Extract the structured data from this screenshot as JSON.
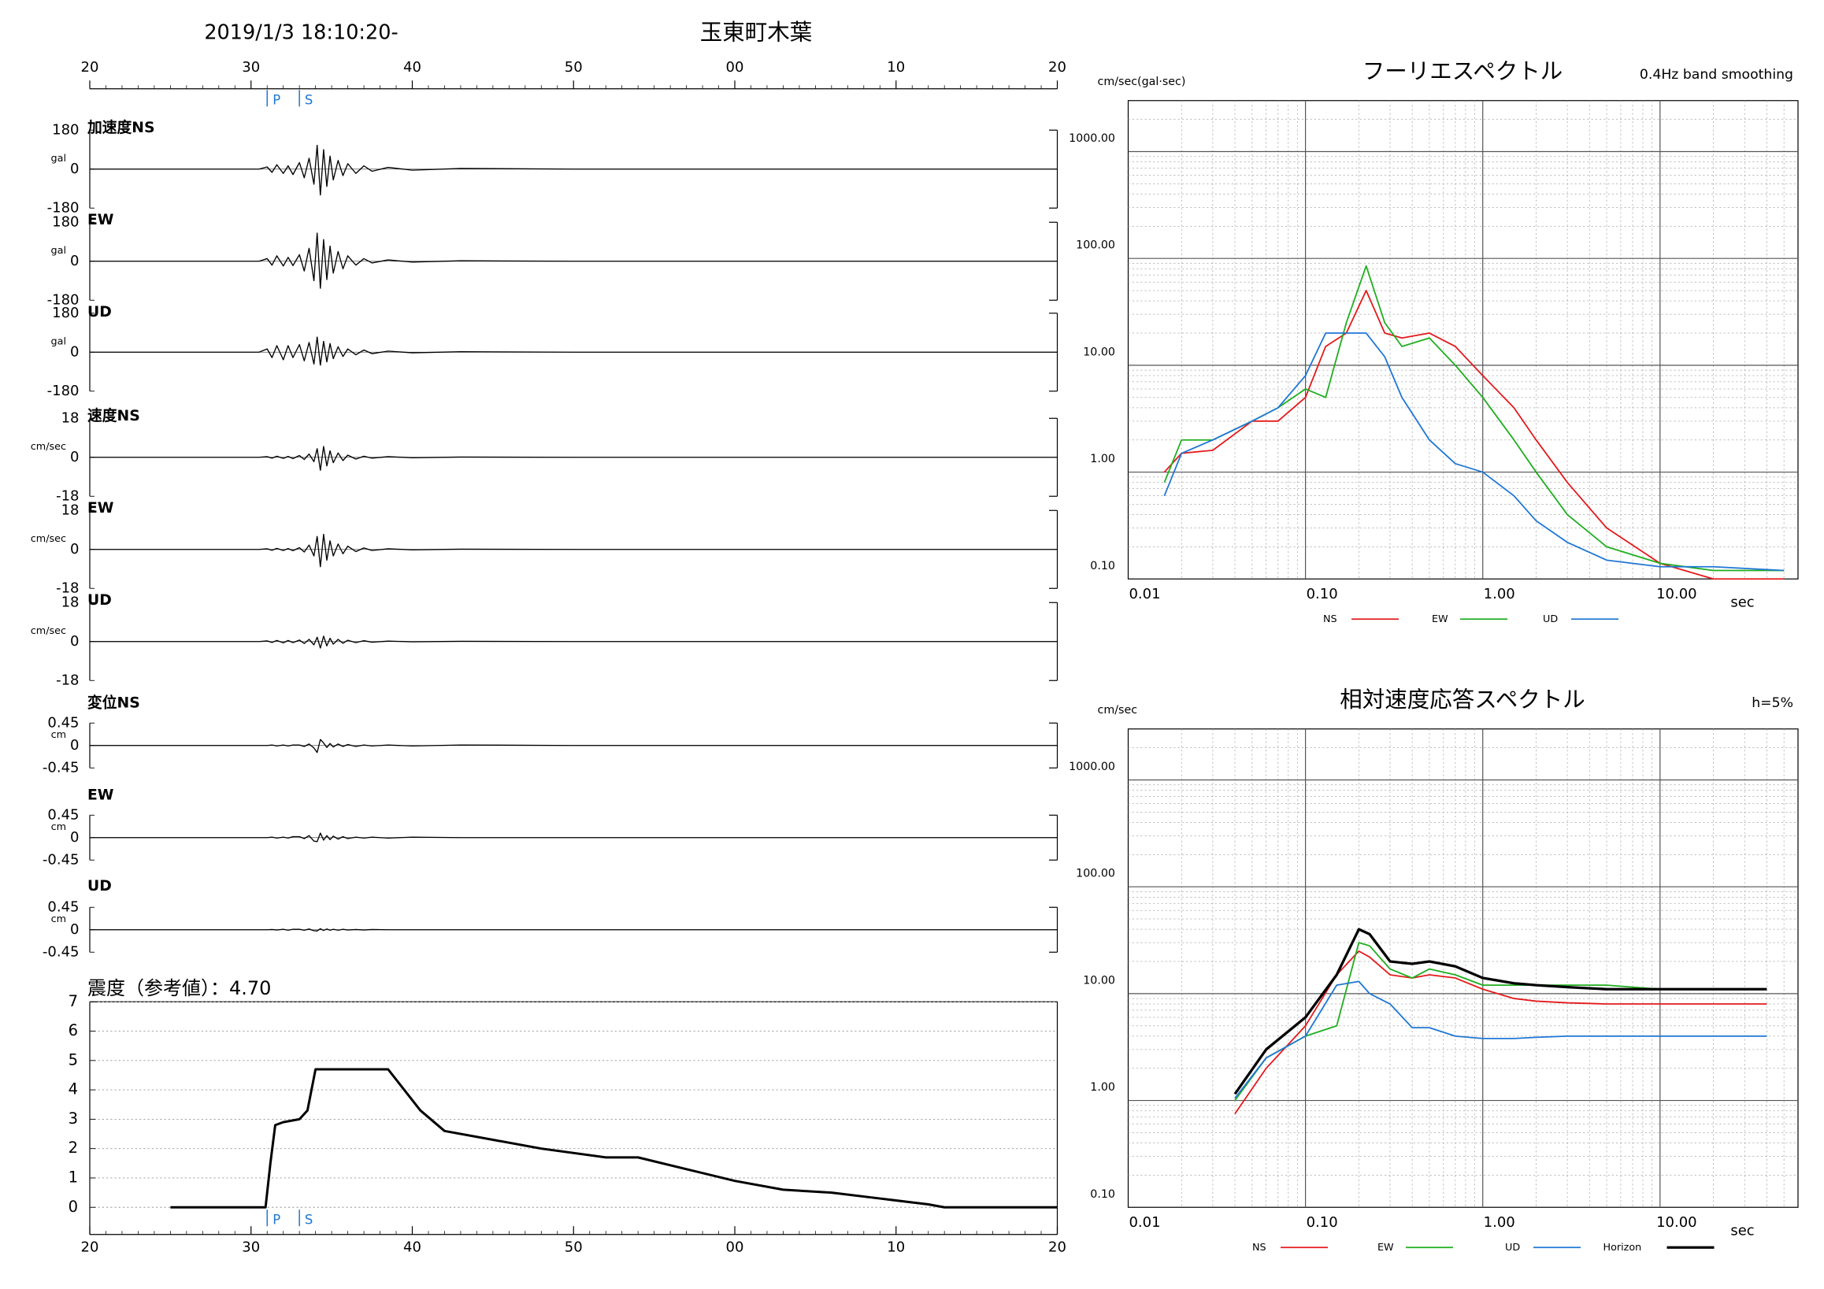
{
  "header": {
    "datetime": "2019/1/3 18:10:20-",
    "station": "玉東町木葉"
  },
  "chart_data": [
    {
      "type": "waveform",
      "xlim": [
        20,
        80
      ],
      "xticks": [
        20,
        30,
        40,
        50,
        {
          "value": 60,
          "label": "00"
        },
        {
          "value": 70,
          "label": "10"
        },
        {
          "value": 80,
          "label": "20"
        }
      ],
      "markers": [
        {
          "label": "P",
          "x": 31
        },
        {
          "label": "S",
          "x": 33
        }
      ],
      "marker_color": "#1f77d4",
      "color": "#000000",
      "x": [
        20,
        30.5,
        31,
        31.3,
        31.6,
        32,
        32.3,
        32.6,
        33,
        33.3,
        33.6,
        33.9,
        34.1,
        34.3,
        34.5,
        34.7,
        34.9,
        35.1,
        35.4,
        35.7,
        36,
        36.5,
        37,
        37.5,
        38.5,
        40,
        43,
        50,
        80
      ],
      "panels": [
        {
          "label": "加速度NS",
          "unit": "gal",
          "ylim": [
            -180,
            180
          ],
          "yticks": [
            -180,
            0,
            180
          ],
          "values": [
            0,
            0,
            10,
            -15,
            20,
            -20,
            15,
            -25,
            30,
            -40,
            50,
            -70,
            110,
            -120,
            90,
            -80,
            60,
            -50,
            40,
            -30,
            25,
            -20,
            15,
            -10,
            8,
            -5,
            3,
            0,
            0
          ]
        },
        {
          "label": "EW",
          "unit": "gal",
          "ylim": [
            -180,
            180
          ],
          "yticks": [
            -180,
            0,
            180
          ],
          "values": [
            0,
            0,
            12,
            -18,
            25,
            -22,
            18,
            -20,
            30,
            -45,
            60,
            -90,
            130,
            -125,
            100,
            -85,
            70,
            -55,
            45,
            -35,
            25,
            -18,
            12,
            -8,
            6,
            -4,
            2,
            0,
            0
          ]
        },
        {
          "label": "UD",
          "unit": "gal",
          "ylim": [
            -180,
            180
          ],
          "yticks": [
            -180,
            0,
            180
          ],
          "values": [
            0,
            0,
            15,
            -25,
            30,
            -35,
            30,
            -25,
            35,
            -40,
            45,
            -55,
            70,
            -60,
            50,
            -45,
            40,
            -30,
            25,
            -20,
            15,
            -12,
            10,
            -7,
            5,
            -3,
            2,
            0,
            0
          ]
        },
        {
          "label": "速度NS",
          "unit": "cm/sec",
          "ylim": [
            -18,
            18
          ],
          "yticks": [
            -18,
            0,
            18
          ],
          "values": [
            0,
            0,
            0.3,
            -0.4,
            0.5,
            -0.5,
            0.4,
            -0.6,
            0.8,
            -1,
            1.5,
            -2,
            4,
            -6,
            5,
            -4,
            3,
            -2.5,
            2,
            -1.5,
            1,
            -0.8,
            0.5,
            -0.4,
            0.3,
            -0.2,
            0.1,
            0,
            0
          ]
        },
        {
          "label": "EW",
          "unit": "cm/sec",
          "ylim": [
            -18,
            18
          ],
          "yticks": [
            -18,
            0,
            18
          ],
          "values": [
            0,
            0,
            0.3,
            -0.4,
            0.5,
            -0.5,
            0.4,
            -0.6,
            0.8,
            -1.2,
            2,
            -3,
            6,
            -8,
            7,
            -5,
            4,
            -3,
            2.5,
            -2,
            1.5,
            -1,
            0.7,
            -0.5,
            0.3,
            -0.2,
            0.1,
            0,
            0
          ]
        },
        {
          "label": "UD",
          "unit": "cm/sec",
          "ylim": [
            -18,
            18
          ],
          "yticks": [
            -18,
            0,
            18
          ],
          "values": [
            0,
            0,
            0.3,
            -0.4,
            0.5,
            -0.6,
            0.5,
            -0.5,
            0.7,
            -0.9,
            1,
            -1.5,
            2,
            -3,
            2.5,
            -2,
            1.5,
            -1.2,
            1,
            -0.8,
            0.6,
            -0.5,
            0.4,
            -0.3,
            0.2,
            -0.1,
            0.1,
            0,
            0
          ]
        },
        {
          "label": "変位NS",
          "unit": "cm",
          "ylim": [
            -0.45,
            0.45
          ],
          "yticks": [
            -0.45,
            0,
            0.45
          ],
          "values": [
            0,
            0,
            0,
            0.01,
            -0.01,
            0.01,
            -0.01,
            0.01,
            0.01,
            -0.02,
            0.03,
            -0.05,
            -0.14,
            0.12,
            0.05,
            -0.04,
            0.04,
            -0.03,
            0.03,
            -0.02,
            0.02,
            -0.02,
            0.01,
            -0.01,
            0.01,
            -0.01,
            0.01,
            0,
            0
          ]
        },
        {
          "label": "EW",
          "unit": "cm",
          "ylim": [
            -0.45,
            0.45
          ],
          "yticks": [
            -0.45,
            0,
            0.45
          ],
          "values": [
            0,
            0,
            0,
            0.01,
            -0.01,
            0.01,
            -0.01,
            0.02,
            0.02,
            -0.02,
            0.04,
            -0.07,
            -0.08,
            0.09,
            -0.05,
            0.04,
            -0.04,
            0.03,
            -0.03,
            0.02,
            -0.02,
            0.01,
            -0.01,
            0.01,
            -0.01,
            0.01,
            0,
            0,
            0
          ]
        },
        {
          "label": "UD",
          "unit": "cm",
          "ylim": [
            -0.45,
            0.45
          ],
          "yticks": [
            -0.45,
            0,
            0.45
          ],
          "values": [
            0,
            0,
            0,
            0.005,
            -0.005,
            0.01,
            -0.01,
            0.01,
            0.01,
            -0.01,
            0.015,
            -0.02,
            -0.025,
            0.02,
            -0.015,
            0.015,
            -0.01,
            0.01,
            -0.01,
            0.01,
            -0.005,
            0.005,
            -0.005,
            0.005,
            0,
            0,
            0,
            0,
            0
          ]
        }
      ]
    },
    {
      "type": "intensity",
      "title": "震度（参考値）：4.70",
      "xlim": [
        20,
        80
      ],
      "xticks": [
        20,
        30,
        40,
        50,
        {
          "value": 60,
          "label": "00"
        },
        {
          "value": 70,
          "label": "10"
        },
        {
          "value": 80,
          "label": "20"
        }
      ],
      "markers": [
        {
          "label": "P",
          "x": 31
        },
        {
          "label": "S",
          "x": 33
        }
      ],
      "marker_color": "#1f77d4",
      "ylim": [
        0,
        7
      ],
      "yticks": [
        0,
        1,
        2,
        3,
        4,
        5,
        6,
        7
      ],
      "grid": true,
      "color": "#000000",
      "x": [
        25,
        30.9,
        31.2,
        31.5,
        32,
        33,
        33.5,
        34,
        35,
        38.5,
        39.5,
        40.5,
        42,
        45,
        48,
        52,
        54,
        57,
        60,
        63,
        66,
        69,
        72,
        73,
        80
      ],
      "values": [
        0,
        0,
        1.5,
        2.8,
        2.9,
        3.0,
        3.3,
        4.7,
        4.7,
        4.7,
        4.0,
        3.3,
        2.6,
        2.3,
        2.0,
        1.7,
        1.7,
        1.3,
        0.9,
        0.6,
        0.5,
        0.3,
        0.1,
        0,
        0
      ]
    },
    {
      "type": "loglog",
      "title": "フーリエスペクトル",
      "subtitle": "0.4Hz band smoothing",
      "ylabel": "cm/sec(gal·sec)",
      "xlabel": "sec",
      "log_x": true,
      "log_y": true,
      "grid": true,
      "xlim": [
        0.01,
        60
      ],
      "ylim": [
        0.1,
        3000
      ],
      "xticks": [
        {
          "value": 0.01,
          "label": "0.01"
        },
        {
          "value": 0.1,
          "label": "0.10"
        },
        {
          "value": 1,
          "label": "1.00"
        },
        {
          "value": 10,
          "label": "10.00"
        }
      ],
      "yticks": [
        {
          "value": 0.1,
          "label": "0.10"
        },
        {
          "value": 1,
          "label": "1.00"
        },
        {
          "value": 10,
          "label": "10.00"
        },
        {
          "value": 100,
          "label": "100.00"
        },
        {
          "value": 1000,
          "label": "1000.00"
        }
      ],
      "x": [
        0.016,
        0.02,
        0.03,
        0.05,
        0.07,
        0.1,
        0.13,
        0.17,
        0.22,
        0.28,
        0.35,
        0.5,
        0.7,
        1,
        1.5,
        2,
        3,
        5,
        10,
        20,
        50
      ],
      "series": [
        {
          "name": "NS",
          "color": "#e31a1c",
          "values": [
            1,
            1.5,
            1.6,
            3,
            3,
            5,
            15,
            20,
            50,
            20,
            18,
            20,
            15,
            8,
            4,
            2,
            0.8,
            0.3,
            0.14,
            0.1,
            0.1
          ]
        },
        {
          "name": "EW",
          "color": "#1fae1f",
          "values": [
            0.8,
            2,
            2,
            3,
            4,
            6,
            5,
            25,
            85,
            25,
            15,
            18,
            10,
            5,
            2,
            1,
            0.4,
            0.2,
            0.14,
            0.12,
            0.12
          ]
        },
        {
          "name": "UD",
          "color": "#1f77d4",
          "values": [
            0.6,
            1.5,
            2,
            3,
            4,
            8,
            20,
            20,
            20,
            12,
            5,
            2,
            1.2,
            1,
            0.6,
            0.35,
            0.22,
            0.15,
            0.13,
            0.13,
            0.12
          ]
        }
      ]
    },
    {
      "type": "loglog",
      "title": "相対速度応答スペクトル",
      "subtitle": "h=5%",
      "ylabel": "cm/sec",
      "xlabel": "sec",
      "log_x": true,
      "log_y": true,
      "grid": true,
      "xlim": [
        0.01,
        60
      ],
      "ylim": [
        0.1,
        3000
      ],
      "xticks": [
        {
          "value": 0.01,
          "label": "0.01"
        },
        {
          "value": 0.1,
          "label": "0.10"
        },
        {
          "value": 1,
          "label": "1.00"
        },
        {
          "value": 10,
          "label": "10.00"
        }
      ],
      "yticks": [
        {
          "value": 0.1,
          "label": "0.10"
        },
        {
          "value": 1,
          "label": "1.00"
        },
        {
          "value": 10,
          "label": "10.00"
        },
        {
          "value": 100,
          "label": "100.00"
        },
        {
          "value": 1000,
          "label": "1000.00"
        }
      ],
      "x": [
        0.04,
        0.06,
        0.1,
        0.15,
        0.2,
        0.23,
        0.3,
        0.4,
        0.5,
        0.7,
        1,
        1.5,
        2,
        3,
        5,
        10,
        20,
        40
      ],
      "series": [
        {
          "name": "NS",
          "color": "#e31a1c",
          "values": [
            0.75,
            2,
            5,
            15,
            25,
            22,
            15,
            14,
            15,
            14,
            11,
            9,
            8.5,
            8.2,
            8,
            8,
            8,
            8
          ]
        },
        {
          "name": "EW",
          "color": "#1fae1f",
          "values": [
            1,
            2.5,
            4,
            5,
            30,
            28,
            17,
            14,
            17,
            15,
            12,
            12,
            12,
            12,
            12,
            11,
            11,
            11
          ]
        },
        {
          "name": "UD",
          "color": "#1f77d4",
          "values": [
            1.05,
            2.5,
            4,
            12,
            13,
            10,
            8,
            4.8,
            4.8,
            4,
            3.8,
            3.8,
            3.9,
            4,
            4,
            4,
            4,
            4
          ]
        },
        {
          "name": "Horizon",
          "color": "#000000",
          "values": [
            1.15,
            3,
            6,
            15,
            40,
            36,
            20,
            19,
            20,
            18,
            14,
            12.5,
            12,
            11.5,
            11,
            11,
            11,
            11
          ]
        }
      ]
    }
  ]
}
